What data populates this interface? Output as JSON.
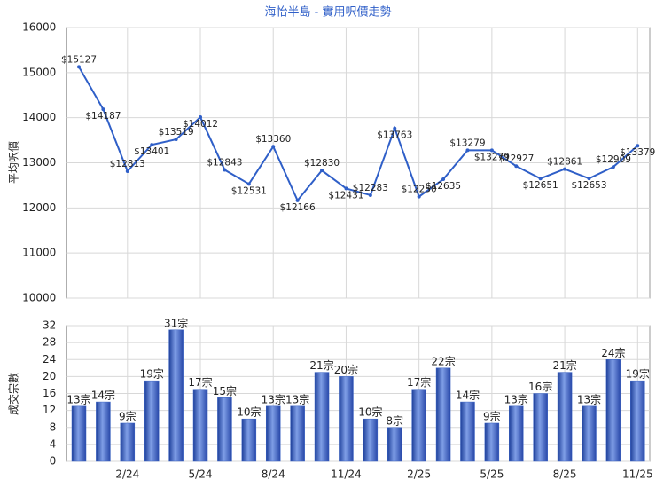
{
  "chart_data": [
    {
      "type": "line",
      "title": "海怡半島 - 實用呎價走勢",
      "y_label": "平均呎價",
      "color": "#2f5fc8",
      "values": [
        15127,
        14187,
        12813,
        13401,
        13519,
        14012,
        12843,
        12531,
        13360,
        12166,
        12830,
        12431,
        12283,
        13763,
        12250,
        12635,
        13279,
        13279,
        12927,
        12651,
        12861,
        12653,
        12909,
        13379
      ],
      "value_labels": [
        "$15127",
        "$14187",
        "$12813",
        "$13401",
        "$13519",
        "$14012",
        "$12843",
        "$12531",
        "$13360",
        "$12166",
        "$12830",
        "$12431",
        "$12283",
        "$13763",
        "$12250",
        "$12635",
        "$13279",
        "$13279",
        "$12927",
        "$12651",
        "$12861",
        "$12653",
        "$12909",
        "$13379"
      ],
      "ylim": [
        10000,
        16000
      ],
      "yticks": [
        10000,
        11000,
        12000,
        13000,
        14000,
        15000,
        16000
      ],
      "grid": true
    },
    {
      "type": "bar",
      "y_label": "成交宗數",
      "color": "#3a63c4",
      "categories": [
        null,
        null,
        "2/24",
        null,
        null,
        "5/24",
        null,
        null,
        "8/24",
        null,
        null,
        "11/24",
        null,
        null,
        "2/25",
        null,
        null,
        "5/25",
        null,
        null,
        "8/25",
        null,
        null,
        "11/25"
      ],
      "values": [
        13,
        14,
        9,
        19,
        31,
        17,
        15,
        10,
        13,
        13,
        21,
        20,
        10,
        8,
        17,
        22,
        14,
        9,
        13,
        16,
        21,
        13,
        24,
        19
      ],
      "value_labels": [
        "13宗",
        "14宗",
        "9宗",
        "19宗",
        "31宗",
        "17宗",
        "15宗",
        "10宗",
        "13宗",
        "13宗",
        "21宗",
        "20宗",
        "10宗",
        "8宗",
        "17宗",
        "22宗",
        "14宗",
        "9宗",
        "13宗",
        "16宗",
        "21宗",
        "13宗",
        "24宗",
        "19宗"
      ],
      "ylim": [
        0,
        32
      ],
      "yticks": [
        0,
        4,
        8,
        12,
        16,
        20,
        24,
        28,
        32
      ],
      "grid": true
    }
  ]
}
